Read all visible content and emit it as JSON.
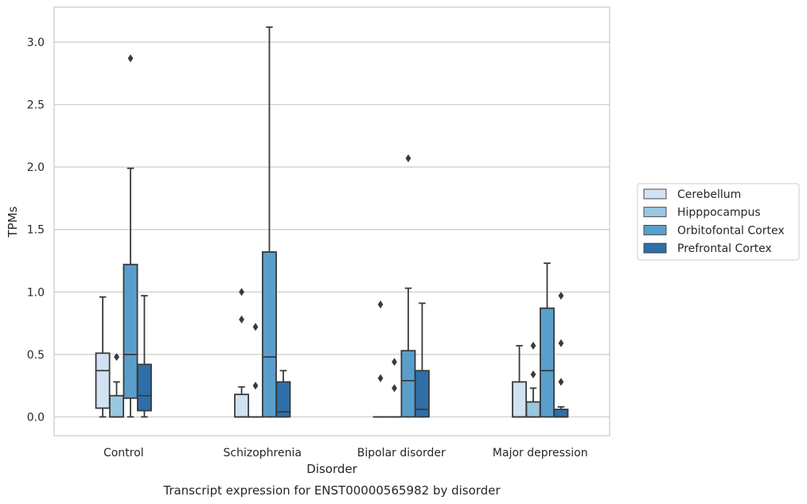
{
  "chart_data": {
    "type": "boxplot",
    "title": "Transcript expression for ENST00000565982 by disorder",
    "xlabel": "Disorder",
    "ylabel": "TPMs",
    "ylim": [
      -0.15,
      3.28
    ],
    "yticks": [
      "0.0",
      "0.5",
      "1.0",
      "1.5",
      "2.0",
      "2.5",
      "3.0"
    ],
    "grid": "horizontal",
    "legend_position": "right",
    "categories": [
      "Control",
      "Schizophrenia",
      "Bipolar disorder",
      "Major depression"
    ],
    "series": [
      {
        "name": "Cerebellum",
        "color": "#d1e2f2",
        "boxes": [
          {
            "whislo": 0.0,
            "q1": 0.07,
            "med": 0.37,
            "q3": 0.51,
            "whishi": 0.96,
            "fliers": []
          },
          {
            "whislo": 0.0,
            "q1": 0.0,
            "med": 0.0,
            "q3": 0.18,
            "whishi": 0.24,
            "fliers": [
              0.78,
              1.0
            ]
          },
          {
            "whislo": 0.0,
            "q1": 0.0,
            "med": 0.0,
            "q3": 0.0,
            "whishi": 0.0,
            "fliers": [
              0.31,
              0.9
            ]
          },
          {
            "whislo": 0.0,
            "q1": 0.0,
            "med": 0.0,
            "q3": 0.28,
            "whishi": 0.57,
            "fliers": []
          }
        ]
      },
      {
        "name": "Hipppocampus",
        "color": "#9ac8e0",
        "boxes": [
          {
            "whislo": 0.0,
            "q1": 0.0,
            "med": 0.0,
            "q3": 0.17,
            "whishi": 0.28,
            "fliers": [
              0.48
            ]
          },
          {
            "whislo": 0.0,
            "q1": 0.0,
            "med": 0.0,
            "q3": 0.0,
            "whishi": 0.0,
            "fliers": [
              0.25,
              0.72
            ]
          },
          {
            "whislo": 0.0,
            "q1": 0.0,
            "med": 0.0,
            "q3": 0.0,
            "whishi": 0.0,
            "fliers": [
              0.23,
              0.44
            ]
          },
          {
            "whislo": 0.0,
            "q1": 0.0,
            "med": 0.0,
            "q3": 0.12,
            "whishi": 0.23,
            "fliers": [
              0.34,
              0.57
            ]
          }
        ]
      },
      {
        "name": "Orbitofontal Cortex",
        "color": "#5a9fcc",
        "boxes": [
          {
            "whislo": 0.0,
            "q1": 0.15,
            "med": 0.5,
            "q3": 1.22,
            "whishi": 1.99,
            "fliers": [
              2.87
            ]
          },
          {
            "whislo": 0.0,
            "q1": 0.0,
            "med": 0.48,
            "q3": 1.32,
            "whishi": 3.12,
            "fliers": []
          },
          {
            "whislo": 0.0,
            "q1": 0.0,
            "med": 0.29,
            "q3": 0.53,
            "whishi": 1.03,
            "fliers": [
              2.07
            ]
          },
          {
            "whislo": 0.0,
            "q1": 0.0,
            "med": 0.37,
            "q3": 0.87,
            "whishi": 1.23,
            "fliers": []
          }
        ]
      },
      {
        "name": "Prefrontal Cortex",
        "color": "#2e6faa",
        "boxes": [
          {
            "whislo": 0.0,
            "q1": 0.05,
            "med": 0.17,
            "q3": 0.42,
            "whishi": 0.97,
            "fliers": []
          },
          {
            "whislo": 0.0,
            "q1": 0.0,
            "med": 0.04,
            "q3": 0.28,
            "whishi": 0.37,
            "fliers": []
          },
          {
            "whislo": 0.0,
            "q1": 0.0,
            "med": 0.06,
            "q3": 0.37,
            "whishi": 0.91,
            "fliers": []
          },
          {
            "whislo": 0.0,
            "q1": 0.0,
            "med": 0.0,
            "q3": 0.06,
            "whishi": 0.08,
            "fliers": [
              0.28,
              0.59,
              0.97
            ]
          }
        ]
      }
    ]
  }
}
